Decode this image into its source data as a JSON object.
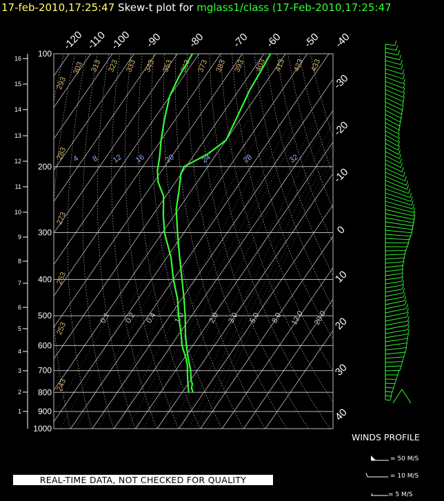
{
  "header": {
    "date_time": "17-feb-2010,17:25:47",
    "plot_label": "Skew-t plot for",
    "source": "mglass1/class (17-Feb-2010,17:25:47"
  },
  "footer_note": "REAL-TIME DATA, NOT CHECKED FOR QUALITY",
  "winds_legend": {
    "title": "WINDS PROFILE",
    "items": [
      {
        "speed": 50,
        "label": "= 50 M/S"
      },
      {
        "speed": 10,
        "label": "= 10 M/S"
      },
      {
        "speed": 5,
        "label": "= 5 M/S"
      }
    ]
  },
  "colors": {
    "background": "#000000",
    "trace": "#33ff33",
    "grid": "#bbbbbb",
    "isotherm": "#ffffff",
    "dry_adiabat_label": "#d4b06a",
    "mixing_ratio_label": "#8fb2ff",
    "title_date": "#ffff66",
    "title_source": "#33ff33"
  },
  "chart_data": {
    "type": "skew-t",
    "pressure_axis": {
      "unit": "hPa",
      "scale": "log",
      "range": [
        1000,
        100
      ],
      "ticks": [
        1000,
        900,
        800,
        700,
        600,
        500,
        400,
        300,
        200,
        100
      ]
    },
    "height_axis": {
      "ticks": [
        1,
        2,
        3,
        4,
        5,
        6,
        7,
        8,
        9,
        10,
        11,
        12,
        13,
        14,
        15,
        16
      ]
    },
    "temperature_axis": {
      "top_labels": [
        -120,
        -110,
        -100,
        -90,
        -80,
        -70,
        -60,
        -50,
        -40
      ],
      "right_labels": [
        -30,
        -20,
        -10,
        0,
        10,
        20,
        30,
        40
      ]
    },
    "dry_adiabat_labels": [
      243,
      253,
      263,
      273,
      283,
      293,
      303,
      313,
      323,
      333,
      343,
      353,
      363,
      373,
      383,
      393,
      403,
      413,
      423,
      433
    ],
    "mixing_ratio_labels_low": [
      "0.1",
      "0.2",
      "0.4",
      "1.0",
      "2.0",
      "3.0",
      "5.0",
      "8.0",
      "12.0",
      "20.0"
    ],
    "mixing_ratio_labels_high": [
      "4",
      "8",
      "12",
      "16",
      "20",
      "24",
      "28",
      "32"
    ],
    "temperature": [
      {
        "p": 800,
        "t": 15
      },
      {
        "p": 780,
        "t": 13
      },
      {
        "p": 760,
        "t": 12
      },
      {
        "p": 740,
        "t": 10
      },
      {
        "p": 700,
        "t": 7
      },
      {
        "p": 650,
        "t": 2
      },
      {
        "p": 600,
        "t": -3
      },
      {
        "p": 560,
        "t": -7
      },
      {
        "p": 500,
        "t": -13
      },
      {
        "p": 450,
        "t": -19
      },
      {
        "p": 400,
        "t": -26
      },
      {
        "p": 350,
        "t": -34
      },
      {
        "p": 300,
        "t": -43
      },
      {
        "p": 260,
        "t": -51
      },
      {
        "p": 230,
        "t": -56
      },
      {
        "p": 210,
        "t": -60
      },
      {
        "p": 200,
        "t": -61
      },
      {
        "p": 185,
        "t": -54
      },
      {
        "p": 170,
        "t": -50
      },
      {
        "p": 150,
        "t": -52
      },
      {
        "p": 125,
        "t": -55
      },
      {
        "p": 110,
        "t": -56
      },
      {
        "p": 100,
        "t": -57
      }
    ],
    "dewpoint": [
      {
        "p": 800,
        "t": 13
      },
      {
        "p": 760,
        "t": 10
      },
      {
        "p": 720,
        "t": 7
      },
      {
        "p": 680,
        "t": 4
      },
      {
        "p": 650,
        "t": 1
      },
      {
        "p": 600,
        "t": -5
      },
      {
        "p": 560,
        "t": -9
      },
      {
        "p": 500,
        "t": -16
      },
      {
        "p": 450,
        "t": -22
      },
      {
        "p": 400,
        "t": -30
      },
      {
        "p": 350,
        "t": -38
      },
      {
        "p": 300,
        "t": -49
      },
      {
        "p": 270,
        "t": -55
      },
      {
        "p": 240,
        "t": -61
      },
      {
        "p": 220,
        "t": -68
      },
      {
        "p": 205,
        "t": -72
      },
      {
        "p": 190,
        "t": -75
      },
      {
        "p": 170,
        "t": -80
      },
      {
        "p": 150,
        "t": -85
      },
      {
        "p": 130,
        "t": -90
      },
      {
        "p": 115,
        "t": -92
      },
      {
        "p": 100,
        "t": -93
      }
    ]
  }
}
